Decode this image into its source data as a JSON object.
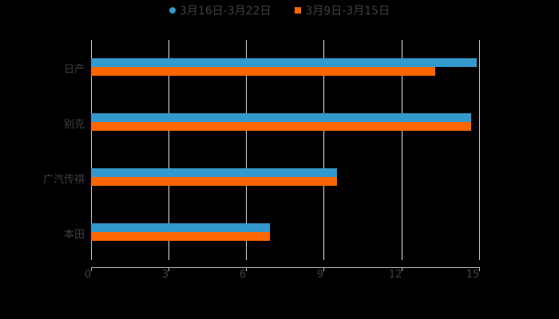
{
  "chart_data": {
    "type": "bar",
    "orientation": "horizontal",
    "title": "",
    "xlabel": "",
    "ylabel": "",
    "categories": [
      "日产",
      "别克",
      "广汽传祺",
      "本田"
    ],
    "series": [
      {
        "name": "3月16日-3月22日",
        "color": "#3399cc",
        "values": [
          14.9,
          14.7,
          9.5,
          6.9
        ]
      },
      {
        "name": "3月9日-3月15日",
        "color": "#ff6600",
        "values": [
          13.3,
          14.7,
          9.5,
          6.9
        ]
      }
    ],
    "xlim": [
      0,
      15
    ],
    "xticks": [
      "0",
      "3",
      "6",
      "9",
      "12",
      "15"
    ],
    "grid": true,
    "legend_position": "top"
  },
  "legend": {
    "items": [
      {
        "label": "3月16日-3月22日",
        "color": "#3399cc",
        "marker": "circle"
      },
      {
        "label": "3月9日-3月15日",
        "color": "#ff6600",
        "marker": "square"
      }
    ]
  }
}
